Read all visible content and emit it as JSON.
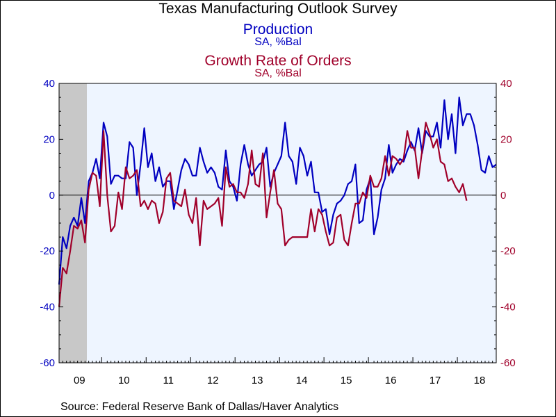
{
  "chart_data": {
    "type": "line",
    "title": "Texas Manufacturing Outlook Survey",
    "x_tick_labels": [
      "09",
      "10",
      "11",
      "12",
      "13",
      "14",
      "15",
      "16",
      "17",
      "18"
    ],
    "left_axis": {
      "ylim": [
        -60,
        40
      ],
      "ticks": [
        40,
        20,
        0,
        -20,
        -40,
        -60
      ],
      "color": "#0000c0"
    },
    "right_axis": {
      "ylim": [
        -60,
        40
      ],
      "ticks": [
        40,
        20,
        0,
        -20,
        -40,
        -60
      ],
      "color": "#a0002a"
    },
    "recession_shading": {
      "color": "#c8c8c8",
      "from_month": 0,
      "to_month": 6
    },
    "plot_background": "#eef5ff",
    "zero_line": true,
    "series": [
      {
        "name": "Production",
        "subtitle": "SA, %Bal",
        "axis": "left",
        "color": "#0000c0",
        "start": "2009-01",
        "values": [
          -32,
          -15,
          -19,
          -11,
          -8,
          -11,
          -1,
          -10,
          5,
          8,
          13,
          6,
          26,
          21,
          4,
          7,
          7,
          6,
          6,
          19,
          17,
          0,
          11,
          24,
          10,
          15,
          5,
          10,
          3,
          5,
          5,
          -5,
          2,
          9,
          13,
          11,
          7,
          7,
          17,
          12,
          8,
          10,
          8,
          3,
          2,
          16,
          5,
          3,
          -2,
          11,
          18,
          11,
          7,
          9,
          11,
          12,
          17,
          3,
          8,
          11,
          14,
          26,
          14,
          12,
          4,
          17,
          14,
          7,
          12,
          1,
          1,
          -6,
          -5,
          -14,
          -7,
          -3,
          -2,
          0,
          4,
          5,
          11,
          -10,
          -9,
          2,
          6,
          -14,
          -8,
          2,
          6,
          18,
          8,
          11,
          13,
          12,
          16,
          19,
          16,
          24,
          15,
          23,
          21,
          21,
          26,
          17,
          34,
          20,
          29,
          15,
          35,
          25,
          29,
          29,
          25,
          18,
          9,
          8,
          14,
          10,
          11
        ]
      },
      {
        "name": "Growth Rate of Orders",
        "subtitle": "SA, %Bal",
        "axis": "right",
        "color": "#a0002a",
        "start": "2009-01",
        "values": [
          -40,
          -26,
          -28,
          -20,
          -11,
          -12,
          -9,
          -17,
          2,
          8,
          7,
          -4,
          23,
          0,
          -13,
          -11,
          1,
          -5,
          10,
          6,
          7,
          9,
          -4,
          -2,
          -5,
          -2,
          -3,
          -10,
          -6,
          6,
          8,
          -2,
          -3,
          -4,
          2,
          -7,
          -10,
          -1,
          -18,
          -2,
          -5,
          -4,
          -3,
          -1,
          -11,
          10,
          3,
          4,
          1,
          1,
          -1,
          4,
          16,
          4,
          3,
          15,
          -8,
          1,
          9,
          -3,
          -5,
          -18,
          -16,
          -15,
          -15,
          -15,
          -15,
          -15,
          -5,
          -13,
          -5,
          -7,
          -13,
          -18,
          -17,
          -8,
          -7,
          -16,
          -18,
          -10,
          -3,
          -3,
          1,
          -1,
          7,
          3,
          3,
          6,
          14,
          7,
          14,
          13,
          11,
          13,
          23,
          17,
          17,
          6,
          16,
          26,
          22,
          17,
          20,
          12,
          11,
          5,
          6,
          3,
          1,
          4,
          -2
        ]
      }
    ],
    "source": "Source:  Federal Reserve Bank of Dallas/Haver Analytics"
  },
  "titles": {
    "main": "Texas Manufacturing Outlook Survey",
    "series1": "Production",
    "series1_sub": "SA, %Bal",
    "series2": "Growth Rate of Orders",
    "series2_sub": "SA, %Bal"
  }
}
